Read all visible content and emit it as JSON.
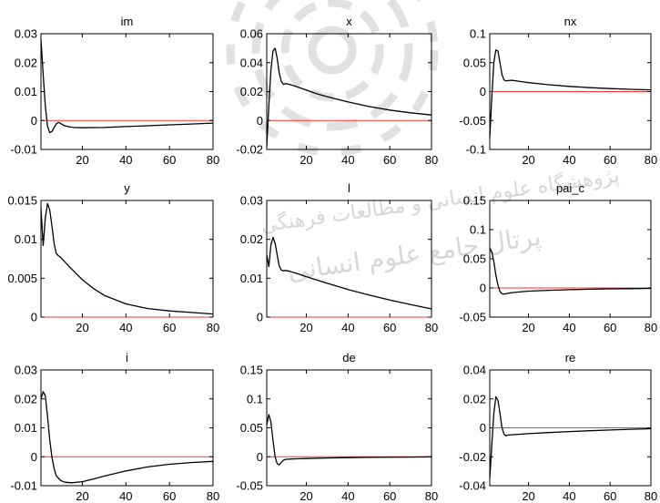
{
  "watermark": {
    "logo": "research-institute-emblem",
    "text_lines": [
      "پژوهشگاه علوم انسانی و مطالعات فرهنگی",
      "پرتال جامع علوم انسانی"
    ]
  },
  "colors": {
    "axis": "#000000",
    "response_line": "#000000",
    "zero_line": "#ff3333",
    "watermark": "#d0d0d0"
  },
  "chart_data": [
    {
      "type": "line",
      "title": "im",
      "xlim": [
        1,
        80
      ],
      "ylim": [
        -0.01,
        0.03
      ],
      "xticks": [
        20,
        40,
        60,
        80
      ],
      "xtick_labels": [
        "20",
        "40",
        "60",
        "80"
      ],
      "yticks": [
        -0.01,
        0,
        0.01,
        0.02,
        0.03
      ],
      "ytick_labels": [
        "-0.01",
        "0",
        "0.01",
        "0.02",
        "0.03"
      ],
      "zero_line": 0,
      "series": [
        {
          "x": [
            1,
            2,
            3,
            4,
            5,
            6,
            7,
            8,
            9,
            10,
            11,
            12,
            14,
            16,
            20,
            30,
            40,
            50,
            60,
            70,
            80
          ],
          "y": [
            0.028,
            0.016,
            0.005,
            -0.002,
            -0.0042,
            -0.0038,
            -0.0025,
            -0.0012,
            -0.0006,
            -0.001,
            -0.0015,
            -0.0018,
            -0.0022,
            -0.0024,
            -0.0025,
            -0.0024,
            -0.0021,
            -0.0018,
            -0.0015,
            -0.0012,
            -0.0009
          ]
        }
      ]
    },
    {
      "type": "line",
      "title": "x",
      "xlim": [
        1,
        80
      ],
      "ylim": [
        -0.02,
        0.06
      ],
      "xticks": [
        20,
        40,
        60,
        80
      ],
      "xtick_labels": [
        "20",
        "40",
        "60",
        "80"
      ],
      "yticks": [
        -0.02,
        0,
        0.02,
        0.04,
        0.06
      ],
      "ytick_labels": [
        "-0.02",
        "0",
        "0.02",
        "0.04",
        "0.06"
      ],
      "zero_line": 0,
      "series": [
        {
          "x": [
            1,
            2,
            3,
            4,
            5,
            6,
            7,
            8,
            9,
            10,
            12,
            15,
            20,
            25,
            30,
            40,
            50,
            60,
            70,
            80
          ],
          "y": [
            -0.018,
            0.01,
            0.035,
            0.048,
            0.05,
            0.043,
            0.033,
            0.027,
            0.025,
            0.0255,
            0.025,
            0.0235,
            0.021,
            0.0185,
            0.0165,
            0.0128,
            0.0097,
            0.0072,
            0.0053,
            0.0038
          ]
        }
      ]
    },
    {
      "type": "line",
      "title": "nx",
      "xlim": [
        1,
        80
      ],
      "ylim": [
        -0.1,
        0.1
      ],
      "xticks": [
        20,
        40,
        60,
        80
      ],
      "xtick_labels": [
        "20",
        "40",
        "60",
        "80"
      ],
      "yticks": [
        -0.1,
        -0.05,
        0,
        0.05,
        0.1
      ],
      "ytick_labels": [
        "-0.1",
        "-0.05",
        "0",
        "0.05",
        "0.1"
      ],
      "zero_line": 0,
      "series": [
        {
          "x": [
            1,
            2,
            3,
            4,
            5,
            6,
            7,
            8,
            9,
            10,
            12,
            15,
            20,
            30,
            40,
            50,
            60,
            70,
            80
          ],
          "y": [
            -0.08,
            -0.01,
            0.05,
            0.072,
            0.07,
            0.05,
            0.03,
            0.02,
            0.0185,
            0.019,
            0.0195,
            0.018,
            0.0155,
            0.0118,
            0.009,
            0.0068,
            0.0052,
            0.004,
            0.003
          ]
        }
      ]
    },
    {
      "type": "line",
      "title": "y",
      "xlim": [
        1,
        80
      ],
      "ylim": [
        0,
        0.015
      ],
      "xticks": [
        20,
        40,
        60,
        80
      ],
      "xtick_labels": [
        "20",
        "40",
        "60",
        "80"
      ],
      "yticks": [
        0,
        0.005,
        0.01,
        0.015
      ],
      "ytick_labels": [
        "0",
        "0.005",
        "0.01",
        "0.015"
      ],
      "zero_line": 0,
      "series": [
        {
          "x": [
            1,
            2,
            3,
            4,
            5,
            6,
            7,
            8,
            9,
            10,
            12,
            15,
            20,
            25,
            30,
            40,
            50,
            60,
            70,
            80
          ],
          "y": [
            0.014,
            0.0092,
            0.0128,
            0.0146,
            0.0138,
            0.0118,
            0.0095,
            0.0082,
            0.0079,
            0.0077,
            0.0071,
            0.0062,
            0.0048,
            0.0037,
            0.0028,
            0.0017,
            0.0011,
            0.0008,
            0.0006,
            0.0004
          ]
        }
      ]
    },
    {
      "type": "line",
      "title": "l",
      "xlim": [
        1,
        80
      ],
      "ylim": [
        0,
        0.03
      ],
      "xticks": [
        20,
        40,
        60,
        80
      ],
      "xtick_labels": [
        "20",
        "40",
        "60",
        "80"
      ],
      "yticks": [
        0,
        0.01,
        0.02,
        0.03
      ],
      "ytick_labels": [
        "0",
        "0.01",
        "0.02",
        "0.03"
      ],
      "zero_line": 0,
      "series": [
        {
          "x": [
            1,
            2,
            3,
            4,
            5,
            6,
            7,
            8,
            9,
            10,
            12,
            15,
            20,
            30,
            40,
            50,
            60,
            70,
            80
          ],
          "y": [
            0.016,
            0.013,
            0.0185,
            0.0205,
            0.019,
            0.016,
            0.0132,
            0.0121,
            0.0119,
            0.012,
            0.0118,
            0.0113,
            0.0104,
            0.0087,
            0.0071,
            0.0057,
            0.0044,
            0.0032,
            0.0021
          ]
        }
      ]
    },
    {
      "type": "line",
      "title": "pai_c",
      "xlim": [
        1,
        80
      ],
      "ylim": [
        -0.05,
        0.15
      ],
      "xticks": [
        20,
        40,
        60,
        80
      ],
      "xtick_labels": [
        "20",
        "40",
        "60",
        "80"
      ],
      "yticks": [
        -0.05,
        0,
        0.05,
        0.1,
        0.15
      ],
      "ytick_labels": [
        "-0.05",
        "0",
        "0.05",
        "0.1",
        "0.15"
      ],
      "zero_line": 0,
      "series": [
        {
          "x": [
            1,
            2,
            3,
            4,
            5,
            6,
            7,
            8,
            9,
            10,
            12,
            15,
            20,
            30,
            40,
            50,
            60,
            70,
            80
          ],
          "y": [
            0.068,
            0.062,
            0.045,
            0.022,
            0.005,
            -0.006,
            -0.01,
            -0.0105,
            -0.01,
            -0.009,
            -0.008,
            -0.007,
            -0.0055,
            -0.004,
            -0.003,
            -0.0022,
            -0.0016,
            -0.0012,
            -0.0008
          ]
        }
      ]
    },
    {
      "type": "line",
      "title": "i",
      "xlim": [
        1,
        80
      ],
      "ylim": [
        -0.01,
        0.03
      ],
      "xticks": [
        20,
        40,
        60,
        80
      ],
      "xtick_labels": [
        "20",
        "40",
        "60",
        "80"
      ],
      "yticks": [
        -0.01,
        0,
        0.01,
        0.02,
        0.03
      ],
      "ytick_labels": [
        "-0.01",
        "0",
        "0.01",
        "0.02",
        "0.03"
      ],
      "zero_line": 0,
      "series": [
        {
          "x": [
            1,
            2,
            3,
            4,
            5,
            6,
            7,
            8,
            10,
            12,
            15,
            20,
            25,
            30,
            40,
            50,
            60,
            70,
            80
          ],
          "y": [
            0.02,
            0.0225,
            0.021,
            0.014,
            0.006,
            0.0,
            -0.004,
            -0.0065,
            -0.0082,
            -0.0088,
            -0.009,
            -0.0086,
            -0.0077,
            -0.0067,
            -0.0049,
            -0.0035,
            -0.0026,
            -0.002,
            -0.0016
          ]
        }
      ]
    },
    {
      "type": "line",
      "title": "de",
      "xlim": [
        1,
        80
      ],
      "ylim": [
        -0.05,
        0.15
      ],
      "xticks": [
        20,
        40,
        60,
        80
      ],
      "xtick_labels": [
        "20",
        "40",
        "60",
        "80"
      ],
      "yticks": [
        -0.05,
        0,
        0.05,
        0.1,
        0.15
      ],
      "ytick_labels": [
        "-0.05",
        "0",
        "0.05",
        "0.1",
        "0.15"
      ],
      "zero_line": 0,
      "series": [
        {
          "x": [
            1,
            2,
            3,
            4,
            5,
            6,
            7,
            8,
            9,
            10,
            12,
            15,
            20,
            30,
            40,
            50,
            60,
            70,
            80
          ],
          "y": [
            0.055,
            0.073,
            0.06,
            0.028,
            0.0,
            -0.012,
            -0.014,
            -0.01,
            -0.006,
            -0.0045,
            -0.004,
            -0.0035,
            -0.003,
            -0.0022,
            -0.0015,
            -0.001,
            -0.0007,
            -0.0005,
            -0.0003
          ]
        }
      ]
    },
    {
      "type": "line",
      "title": "re",
      "xlim": [
        1,
        80
      ],
      "ylim": [
        -0.04,
        0.04
      ],
      "xticks": [
        20,
        40,
        60,
        80
      ],
      "xtick_labels": [
        "20",
        "40",
        "60",
        "80"
      ],
      "yticks": [
        -0.04,
        -0.02,
        0,
        0.02,
        0.04
      ],
      "ytick_labels": [
        "-0.04",
        "-0.02",
        "0",
        "0.02",
        "0.04"
      ],
      "zero_line": 0,
      "series": [
        {
          "x": [
            1,
            2,
            3,
            4,
            5,
            6,
            7,
            8,
            9,
            10,
            12,
            15,
            20,
            30,
            40,
            50,
            60,
            70,
            80
          ],
          "y": [
            -0.035,
            -0.012,
            0.01,
            0.0215,
            0.019,
            0.01,
            0.0,
            -0.0045,
            -0.0055,
            -0.005,
            -0.0048,
            -0.0045,
            -0.004,
            -0.0033,
            -0.0026,
            -0.002,
            -0.0015,
            -0.001,
            -0.0006
          ]
        }
      ]
    }
  ]
}
